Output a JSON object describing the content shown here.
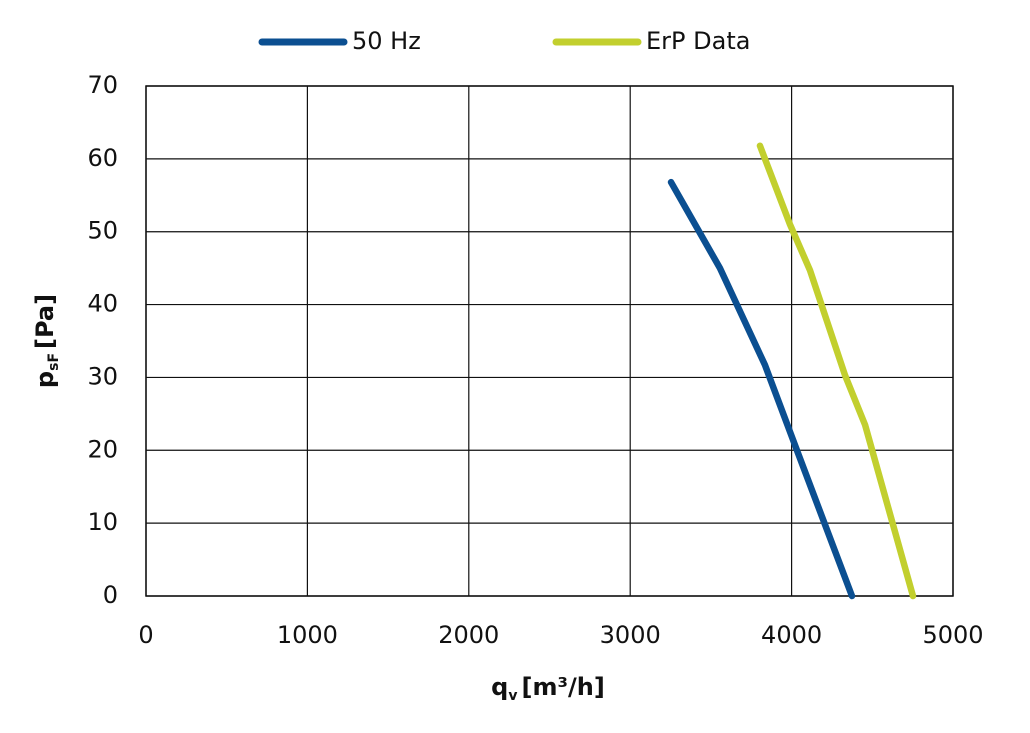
{
  "chart_data": {
    "type": "line",
    "x_label": {
      "symbol": "q",
      "subscript": "v",
      "unit": "[m³/h]"
    },
    "y_label": {
      "symbol": "p",
      "subscript": "sF",
      "unit": "[Pa]"
    },
    "series": [
      {
        "name": "50 Hz",
        "color": "#0b4f91",
        "x": [
          3253,
          3556,
          3835,
          4033,
          4374
        ],
        "values": [
          56.8,
          45,
          31.7,
          20,
          0
        ]
      },
      {
        "name": "ErP Data",
        "color": "#c2cf2e",
        "x": [
          3804,
          3990,
          4114,
          4331,
          4455,
          4752
        ],
        "values": [
          61.8,
          51,
          44.7,
          30.3,
          23.5,
          0
        ]
      }
    ],
    "xlim": [
      0,
      5000
    ],
    "xticks": [
      0,
      1000,
      2000,
      3000,
      4000,
      5000
    ],
    "ylim": [
      0,
      70
    ],
    "yticks": [
      0,
      10,
      20,
      30,
      40,
      50,
      60,
      70
    ],
    "grid": true,
    "legend": "top"
  }
}
